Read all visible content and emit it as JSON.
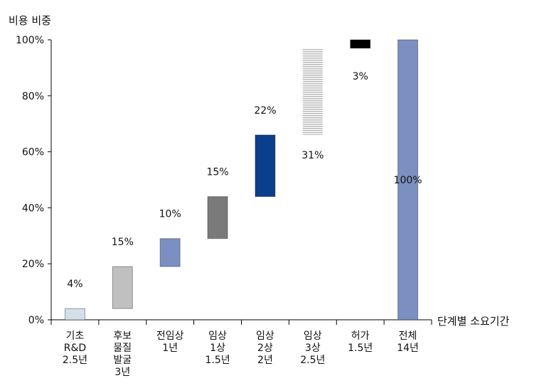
{
  "chart_data": {
    "type": "waterfall",
    "ylabel": "비용 비중",
    "xlabel": "단계별 소요기간",
    "ylim": [
      0,
      100
    ],
    "yticks": [
      0,
      20,
      40,
      60,
      80,
      100
    ],
    "ytick_labels": [
      "0%",
      "20%",
      "40%",
      "60%",
      "80%",
      "100%"
    ],
    "categories": [
      [
        "기초",
        "R&D",
        "2.5년"
      ],
      [
        "후보",
        "물질",
        "발굴",
        "3년"
      ],
      [
        "전임상",
        "1년"
      ],
      [
        "임상",
        "1상",
        "1.5년"
      ],
      [
        "임상",
        "2상",
        "2년"
      ],
      [
        "임상",
        "3상",
        "2.5년"
      ],
      [
        "허가",
        "1.5년"
      ],
      [
        "전체",
        "14년"
      ]
    ],
    "bars": [
      {
        "start": 0,
        "end": 4,
        "label": "4%",
        "color": "#d3dfe9",
        "pattern": "solid"
      },
      {
        "start": 4,
        "end": 19,
        "label": "15%",
        "color": "#c0c0c0",
        "pattern": "solid"
      },
      {
        "start": 19,
        "end": 29,
        "label": "10%",
        "color": "#7b8fc2",
        "pattern": "solid"
      },
      {
        "start": 29,
        "end": 44,
        "label": "15%",
        "color": "#7a7a7a",
        "pattern": "solid"
      },
      {
        "start": 44,
        "end": 66,
        "label": "22%",
        "color": "#0b3f8c",
        "pattern": "solid"
      },
      {
        "start": 66,
        "end": 97,
        "label": "31%",
        "color": "#bdbdbd",
        "pattern": "hstripes"
      },
      {
        "start": 97,
        "end": 100,
        "label": "3%",
        "color": "#000000",
        "pattern": "solid"
      },
      {
        "start": 0,
        "end": 100,
        "label": "100%",
        "color": "#7b8fc0",
        "pattern": "solid"
      }
    ]
  }
}
